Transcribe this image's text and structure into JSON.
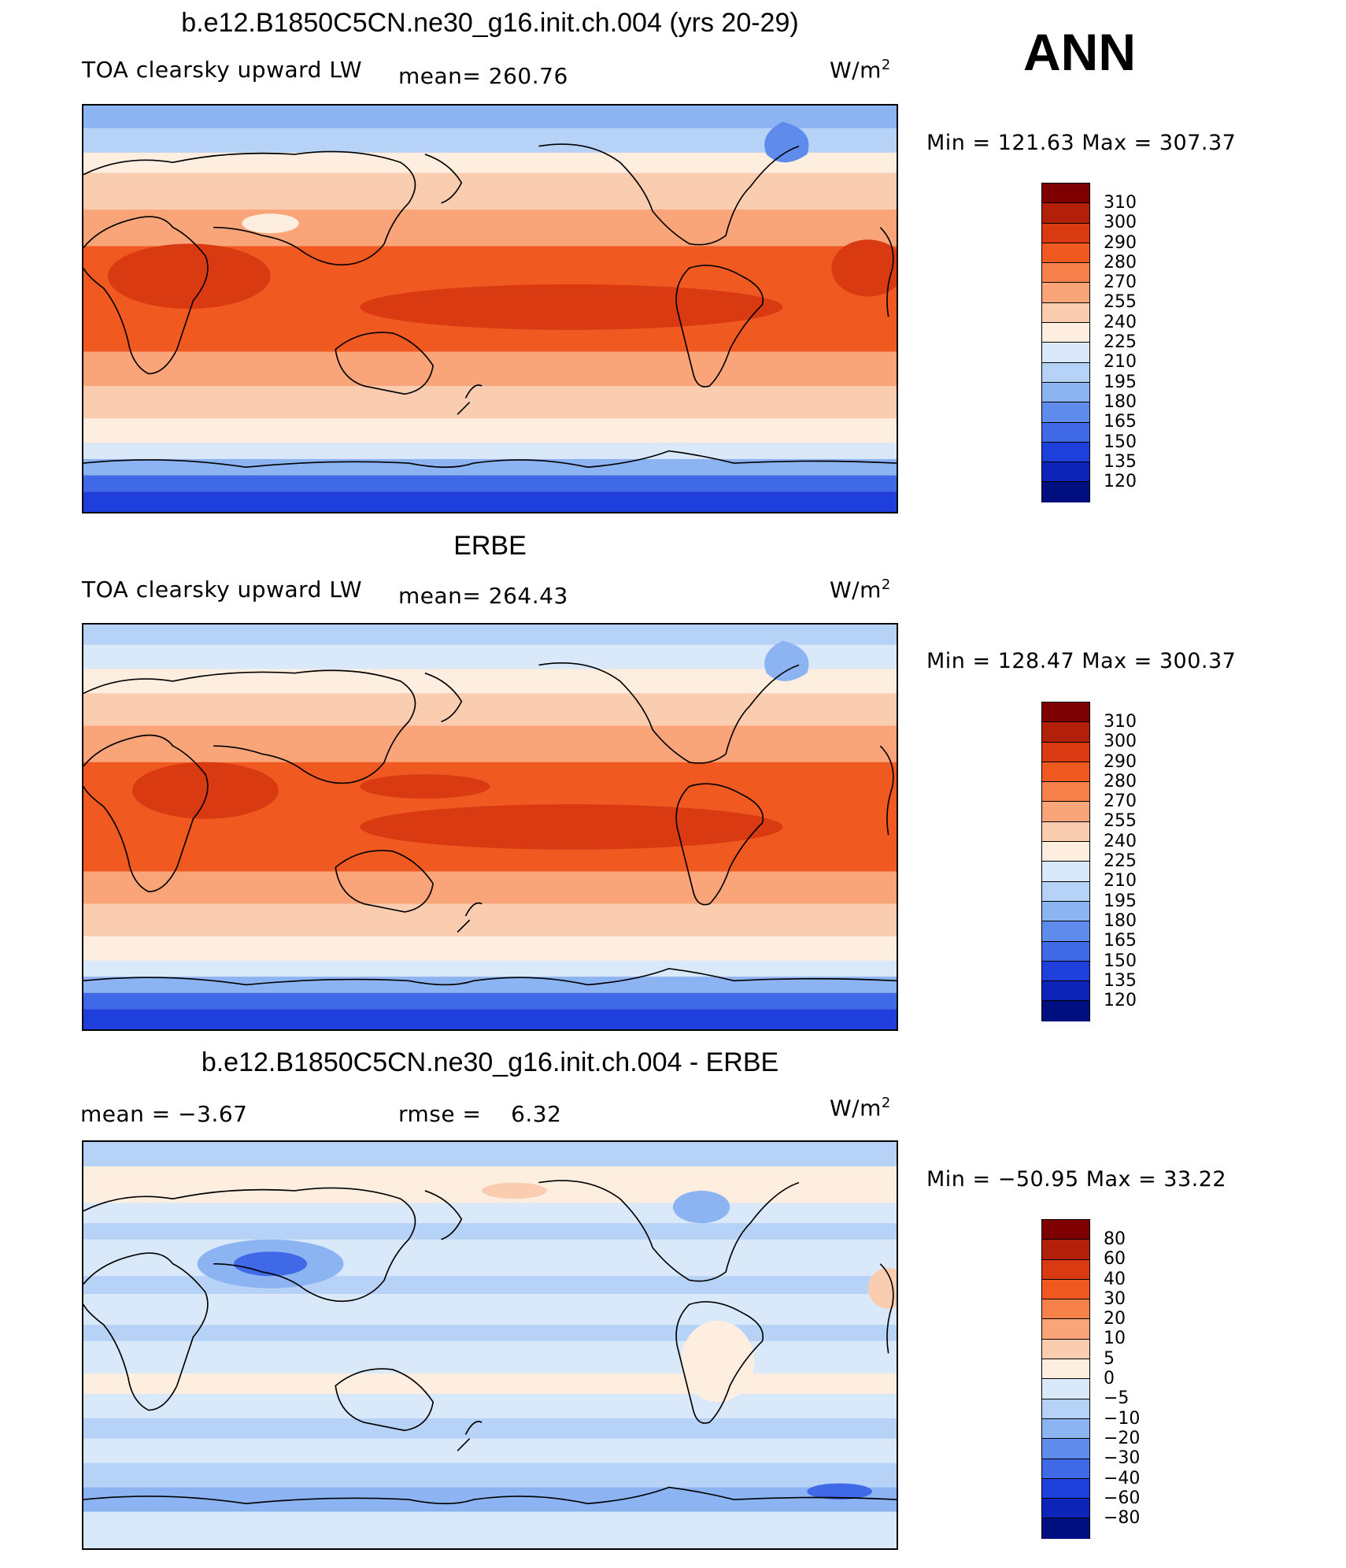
{
  "season": "ANN",
  "units": "W/m²",
  "units_base": "W/m",
  "units_exp": "2",
  "panels": [
    {
      "title": "b.e12.B1850C5CN.ne30_g16.init.ch.004 (yrs 20-29)",
      "left_label": "TOA clearsky upward LW",
      "stat_label": "mean=",
      "stat_value": "260.76",
      "minmax_text": "Min  =  121.63  Max  =  307.37",
      "colorbar": "abs"
    },
    {
      "title": "ERBE",
      "left_label": "TOA clearsky upward LW",
      "stat_label": "mean=",
      "stat_value": "264.43",
      "minmax_text": "Min  =  128.47  Max  =  300.37",
      "colorbar": "abs"
    },
    {
      "title": "b.e12.B1850C5CN.ne30_g16.init.ch.004 - ERBE",
      "left_label": "mean  =     −3.67",
      "stat_label": "rmse  =",
      "stat_value": "6.32",
      "minmax_text": "Min  =  −50.95  Max  =    33.22",
      "colorbar": "diff"
    }
  ],
  "colorbars": {
    "abs": {
      "labels": [
        "310",
        "300",
        "290",
        "280",
        "270",
        "255",
        "240",
        "225",
        "210",
        "195",
        "180",
        "165",
        "150",
        "135",
        "120"
      ],
      "colors": [
        "#7f0000",
        "#b3200a",
        "#d93a12",
        "#f05a20",
        "#f6814a",
        "#f9a479",
        "#fbcdb0",
        "#fdeedf",
        "#d9e9f9",
        "#b6d2f6",
        "#8db4f2",
        "#5f8cec",
        "#3f69e6",
        "#1e3fdc",
        "#0d24b8",
        "#000f80"
      ]
    },
    "diff": {
      "labels": [
        "80",
        "60",
        "40",
        "30",
        "20",
        "10",
        "5",
        "0",
        "−5",
        "−10",
        "−20",
        "−30",
        "−40",
        "−60",
        "−80"
      ],
      "colors": [
        "#7f0000",
        "#b3200a",
        "#d93a12",
        "#f05a20",
        "#f6814a",
        "#f9a479",
        "#fbcdb0",
        "#fdeedf",
        "#d9e9f9",
        "#b6d2f6",
        "#8db4f2",
        "#5f8cec",
        "#3f69e6",
        "#1e3fdc",
        "#0d24b8",
        "#000f80"
      ]
    }
  }
}
